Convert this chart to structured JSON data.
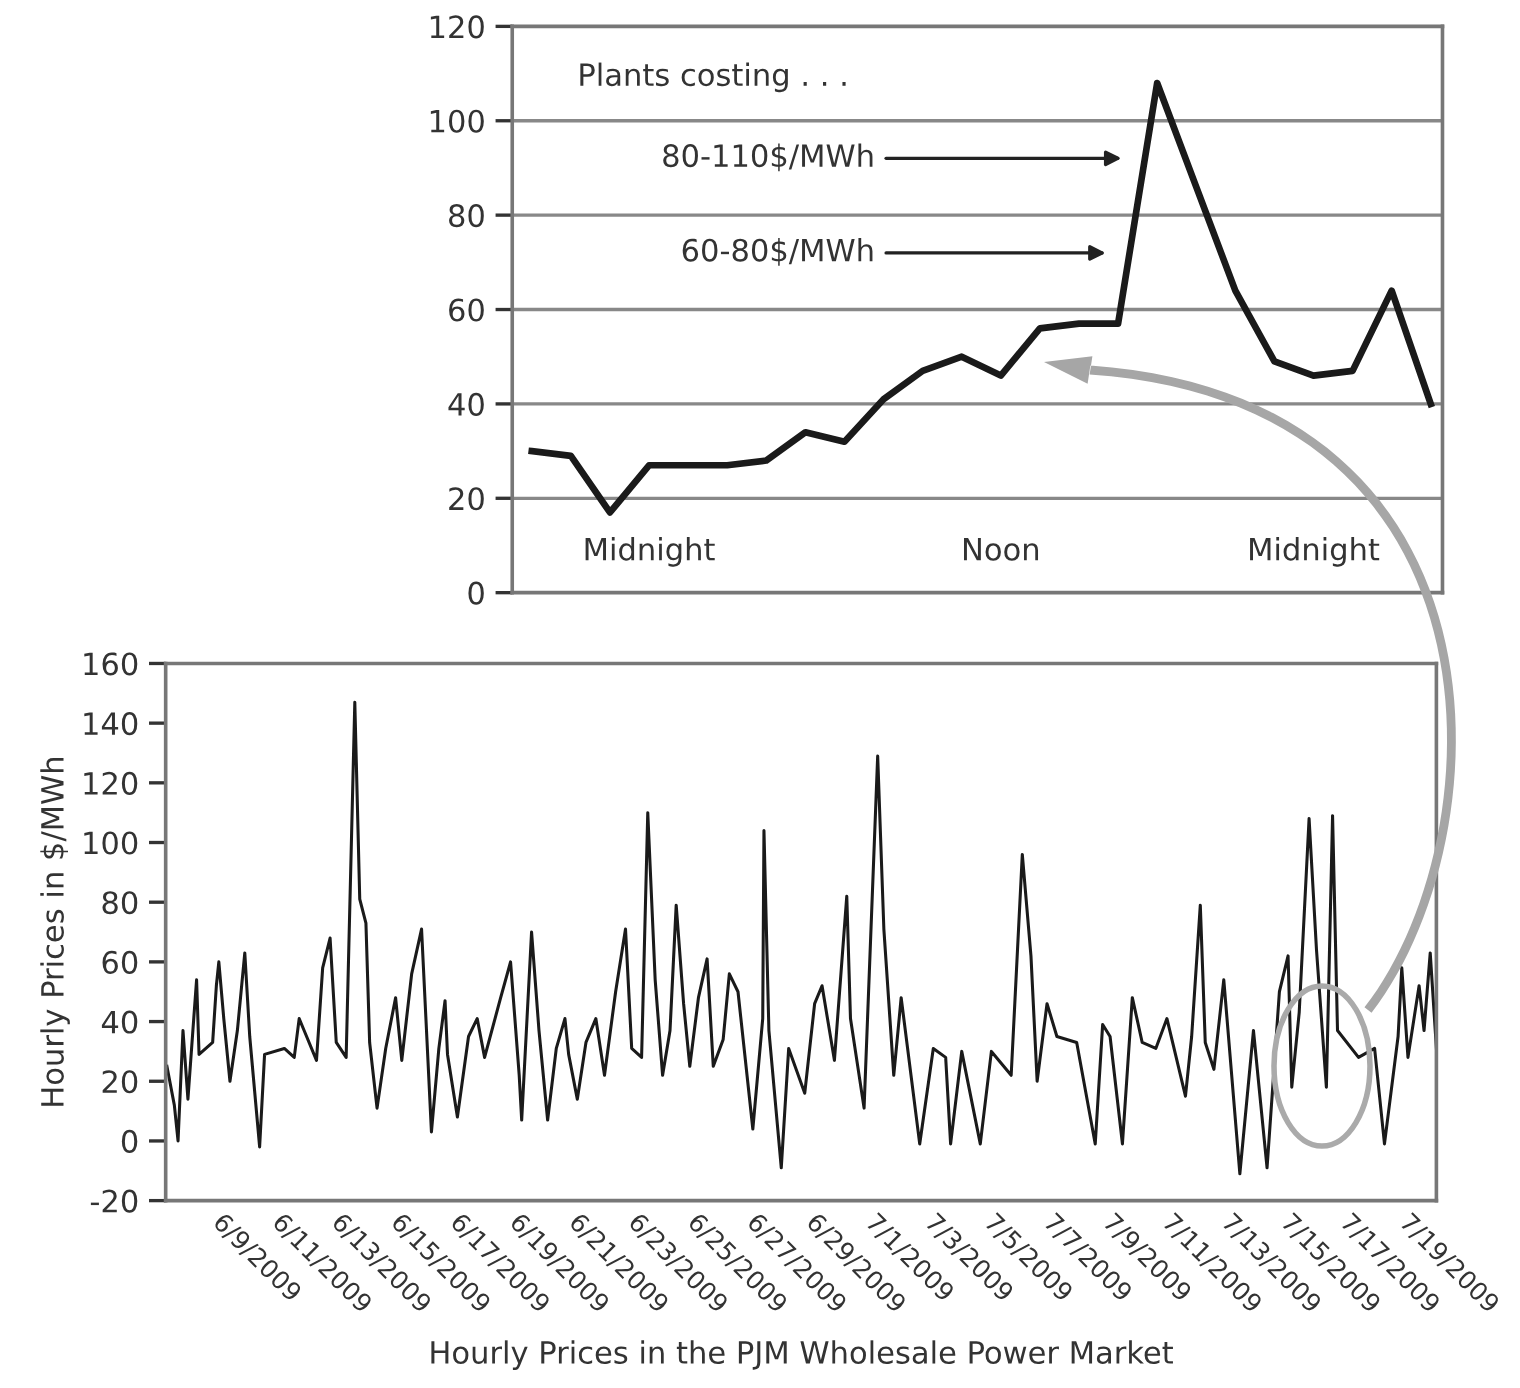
{
  "chart_data": [
    {
      "type": "line",
      "categories": [
        null,
        null,
        null,
        "Midnight",
        null,
        null,
        null,
        null,
        null,
        null,
        null,
        null,
        "Noon",
        null,
        null,
        null,
        null,
        null,
        null,
        null,
        "Midnight",
        null,
        null,
        null
      ],
      "series": [
        {
          "color": "#1a1a1a",
          "values": [
            30,
            29,
            17,
            27,
            27,
            27,
            28,
            34,
            32,
            41,
            47,
            50,
            46,
            56,
            57,
            57,
            108,
            86,
            64,
            49,
            46,
            47,
            64,
            40
          ]
        }
      ],
      "ylim": [
        0,
        120
      ],
      "yticks": [
        0,
        20,
        40,
        60,
        80,
        100,
        120
      ],
      "grid": "y",
      "legend": false,
      "marker": "none",
      "line_style": "solid",
      "annotations": [
        "Plants costing . . .",
        "80-110$/MWh",
        "60-80$/MWh"
      ]
    },
    {
      "type": "line",
      "xlabel": "Hourly Prices in the PJM Wholesale Power Market",
      "ylabel": "Hourly Prices in $/MWh",
      "x": [
        "2009-06-07T01:00",
        "2009-06-07T07:00",
        "2009-06-07T10:00",
        "2009-06-07T14:00",
        "2009-06-07T18:00",
        "2009-06-07T22:00",
        "2009-06-08T01:00",
        "2009-06-08T03:00",
        "2009-06-08T14:00",
        "2009-06-08T17:00",
        "2009-06-08T19:00",
        "2009-06-08T23:00",
        "2009-06-09T04:00",
        "2009-06-09T10:00",
        "2009-06-09T16:00",
        "2009-06-09T20:00",
        "2009-06-10T04:00",
        "2009-06-10T08:00",
        "2009-06-11T00:00",
        "2009-06-11T08:00",
        "2009-06-11T12:00",
        "2009-06-11T16:00",
        "2009-06-12T02:00",
        "2009-06-12T07:00",
        "2009-06-12T13:00",
        "2009-06-12T18:00",
        "2009-06-13T02:00",
        "2009-06-13T09:00",
        "2009-06-13T13:00",
        "2009-06-13T18:00",
        "2009-06-13T21:00",
        "2009-06-14T03:00",
        "2009-06-14T10:00",
        "2009-06-14T18:00",
        "2009-06-14T23:00",
        "2009-06-15T07:00",
        "2009-06-15T15:00",
        "2009-06-15T23:00",
        "2009-06-16T05:00",
        "2009-06-16T10:00",
        "2009-06-16T12:00",
        "2009-06-16T20:00",
        "2009-06-17T05:00",
        "2009-06-17T12:00",
        "2009-06-17T18:00",
        "2009-06-18T07:00",
        "2009-06-18T15:00",
        "2009-06-18T22:00",
        "2009-06-19T00:00",
        "2009-06-19T08:00",
        "2009-06-19T14:00",
        "2009-06-19T21:00",
        "2009-06-20T04:00",
        "2009-06-20T11:00",
        "2009-06-20T14:00",
        "2009-06-20T21:00",
        "2009-06-21T04:00",
        "2009-06-21T12:00",
        "2009-06-21T19:00",
        "2009-06-22T04:00",
        "2009-06-22T12:00",
        "2009-06-22T17:00",
        "2009-06-23T01:00",
        "2009-06-23T06:00",
        "2009-06-23T12:00",
        "2009-06-23T18:00",
        "2009-06-24T00:00",
        "2009-06-24T05:00",
        "2009-06-24T11:00",
        "2009-06-24T16:00",
        "2009-06-24T23:00",
        "2009-06-25T06:00",
        "2009-06-25T11:00",
        "2009-06-25T19:00",
        "2009-06-26T00:00",
        "2009-06-26T07:00",
        "2009-06-26T19:00",
        "2009-06-27T03:00",
        "2009-06-27T04:00",
        "2009-06-27T08:00",
        "2009-06-27T18:00",
        "2009-06-28T00:00",
        "2009-06-28T13:00",
        "2009-06-28T21:00",
        "2009-06-29T03:00",
        "2009-06-29T13:00",
        "2009-06-29T23:00",
        "2009-06-30T02:00",
        "2009-06-30T13:00",
        "2009-07-01T00:00",
        "2009-07-01T05:00",
        "2009-07-01T13:00",
        "2009-07-01T19:00",
        "2009-07-02T10:00",
        "2009-07-02T21:00",
        "2009-07-03T07:00",
        "2009-07-03T11:00",
        "2009-07-03T20:00",
        "2009-07-04T11:00",
        "2009-07-04T20:00",
        "2009-07-05T12:00",
        "2009-07-05T21:00",
        "2009-07-06T04:00",
        "2009-07-06T09:00",
        "2009-07-06T17:00",
        "2009-07-07T01:00",
        "2009-07-07T17:00",
        "2009-07-08T08:00",
        "2009-07-08T14:00",
        "2009-07-08T20:00",
        "2009-07-09T06:00",
        "2009-07-09T14:00",
        "2009-07-09T22:00",
        "2009-07-10T09:00",
        "2009-07-10T18:00",
        "2009-07-11T09:00",
        "2009-07-11T14:00",
        "2009-07-11T21:00",
        "2009-07-12T01:00",
        "2009-07-12T08:00",
        "2009-07-12T16:00",
        "2009-07-13T05:00",
        "2009-07-13T16:00",
        "2009-07-14T03:00",
        "2009-07-14T13:00",
        "2009-07-14T20:00",
        "2009-07-14T23:00",
        "2009-07-15T05:00",
        "2009-07-15T13:00",
        "2009-07-15T19:00",
        "2009-07-16T03:00",
        "2009-07-16T08:00",
        "2009-07-16T12:00",
        "2009-07-17T05:00",
        "2009-07-17T18:00",
        "2009-07-18T02:00",
        "2009-07-18T13:00",
        "2009-07-18T16:00",
        "2009-07-18T21:00",
        "2009-07-19T06:00",
        "2009-07-19T10:00",
        "2009-07-19T15:00",
        "2009-07-19T20:00"
      ],
      "series": [
        {
          "color": "#1a1a1a",
          "values": [
            25,
            12,
            0,
            37,
            14,
            37,
            54,
            29,
            33,
            52,
            60,
            41,
            20,
            37,
            63,
            35,
            -2,
            29,
            31,
            28,
            41,
            37,
            27,
            58,
            68,
            33,
            28,
            147,
            81,
            73,
            33,
            11,
            31,
            48,
            27,
            56,
            71,
            3,
            31,
            47,
            29,
            8,
            35,
            41,
            28,
            48,
            60,
            22,
            7,
            70,
            37,
            7,
            31,
            41,
            29,
            14,
            33,
            41,
            22,
            50,
            71,
            31,
            28,
            110,
            54,
            22,
            37,
            79,
            46,
            25,
            48,
            61,
            25,
            34,
            56,
            50,
            4,
            41,
            104,
            37,
            -9,
            31,
            16,
            46,
            52,
            27,
            82,
            41,
            11,
            129,
            71,
            22,
            48,
            -1,
            31,
            28,
            -1,
            30,
            -1,
            30,
            22,
            96,
            62,
            20,
            46,
            35,
            33,
            -1,
            39,
            35,
            -1,
            48,
            33,
            31,
            41,
            15,
            35,
            79,
            33,
            24,
            54,
            -11,
            37,
            -9,
            50,
            62,
            18,
            43,
            108,
            64,
            18,
            109,
            37,
            28,
            31,
            -1,
            35,
            58,
            28,
            52,
            37,
            63,
            31
          ]
        }
      ],
      "xlim": [
        "2009-06-07T00:00",
        "2009-07-19T20:00"
      ],
      "xticks": [
        {
          "value": "2009-06-09",
          "label": "6/9/2009"
        },
        {
          "value": "2009-06-11",
          "label": "6/11/2009"
        },
        {
          "value": "2009-06-13",
          "label": "6/13/2009"
        },
        {
          "value": "2009-06-15",
          "label": "6/15/2009"
        },
        {
          "value": "2009-06-17",
          "label": "6/17/2009"
        },
        {
          "value": "2009-06-19",
          "label": "6/19/2009"
        },
        {
          "value": "2009-06-21",
          "label": "6/21/2009"
        },
        {
          "value": "2009-06-23",
          "label": "6/23/2009"
        },
        {
          "value": "2009-06-25",
          "label": "6/25/2009"
        },
        {
          "value": "2009-06-27",
          "label": "6/27/2009"
        },
        {
          "value": "2009-06-29",
          "label": "6/29/2009"
        },
        {
          "value": "2009-07-01",
          "label": "7/1/2009"
        },
        {
          "value": "2009-07-03",
          "label": "7/3/2009"
        },
        {
          "value": "2009-07-05",
          "label": "7/5/2009"
        },
        {
          "value": "2009-07-07",
          "label": "7/7/2009"
        },
        {
          "value": "2009-07-09",
          "label": "7/9/2009"
        },
        {
          "value": "2009-07-11",
          "label": "7/11/2009"
        },
        {
          "value": "2009-07-13",
          "label": "7/13/2009"
        },
        {
          "value": "2009-07-15",
          "label": "7/15/2009"
        },
        {
          "value": "2009-07-17",
          "label": "7/17/2009"
        },
        {
          "value": "2009-07-19",
          "label": "7/19/2009"
        }
      ],
      "ylim": [
        -20,
        160
      ],
      "yticks": [
        -20,
        0,
        20,
        40,
        60,
        80,
        100,
        120,
        140,
        160
      ],
      "grid": false,
      "legend": false,
      "marker": "none",
      "line_style": "solid"
    }
  ]
}
